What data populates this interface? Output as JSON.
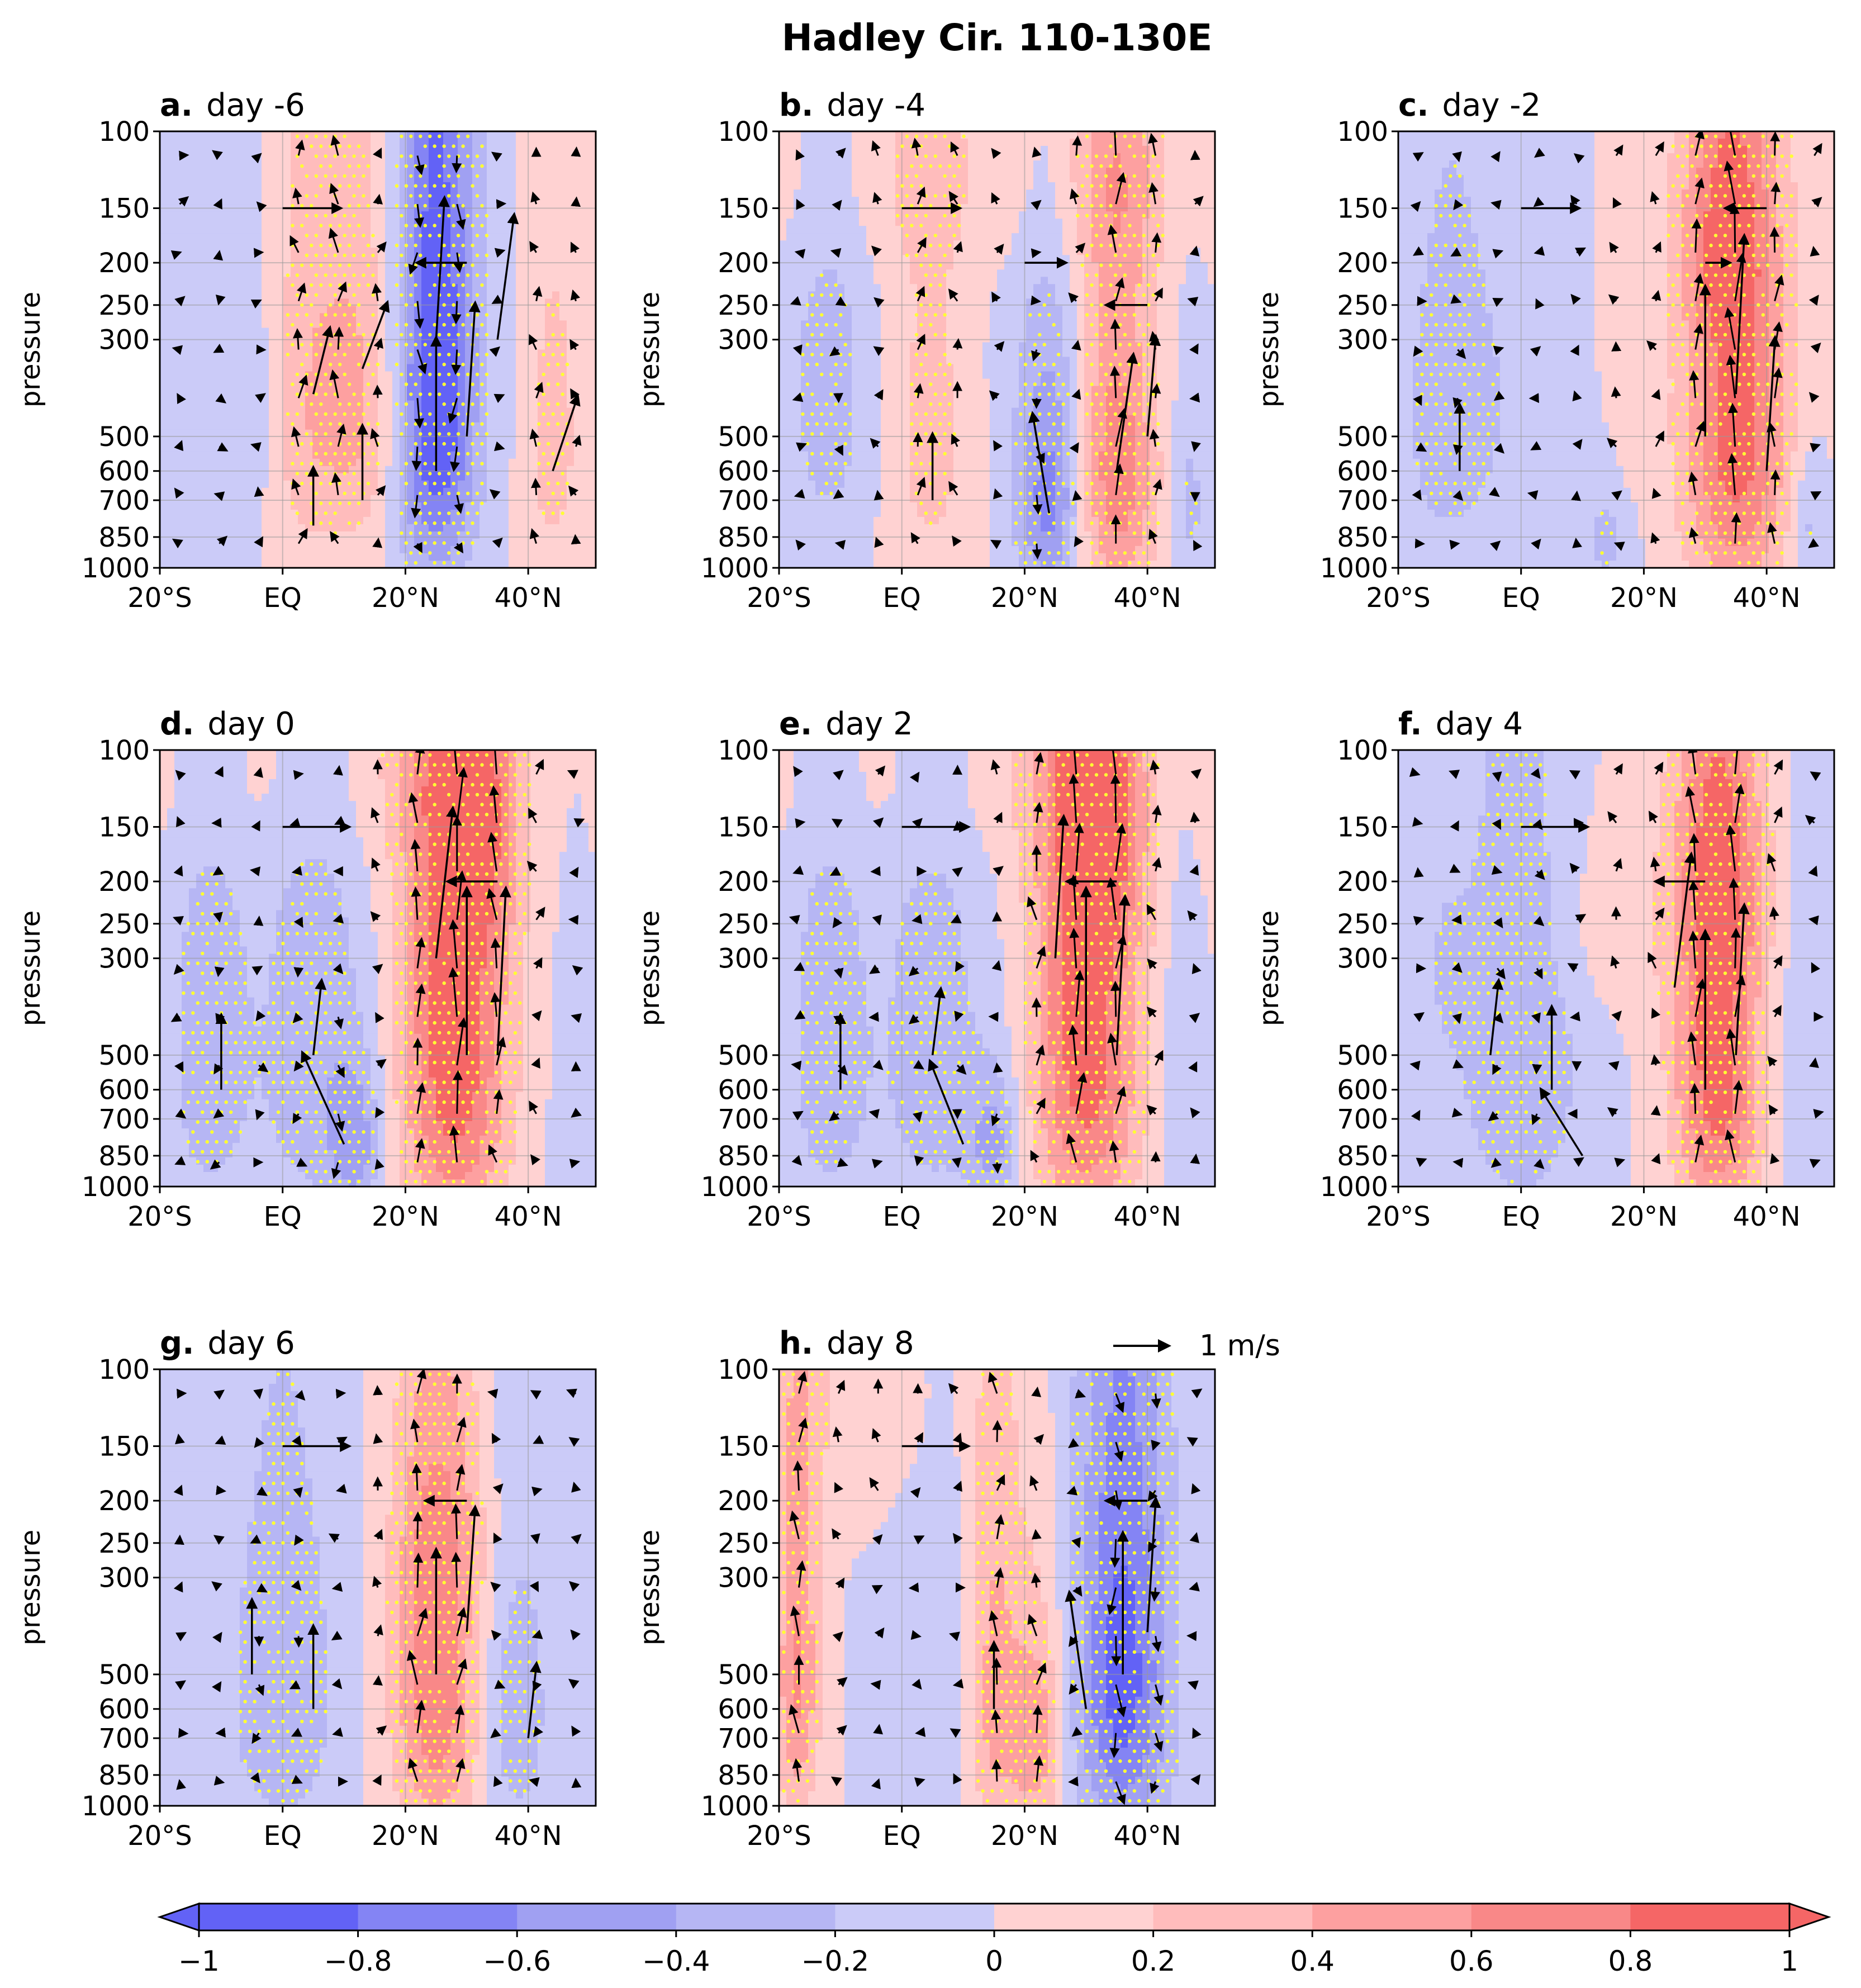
{
  "chart_data": {
    "type": "vector-contour-panels",
    "title": "Hadley Cir. 110-130E",
    "panels": [
      {
        "letter": "a.",
        "label": "day -6",
        "blobs": [
          [
            0,
            -11,
            450,
            9,
            320,
            -0.08
          ],
          [
            0,
            29,
            300,
            10,
            300,
            -0.06
          ],
          [
            0,
            -5,
            420,
            6,
            300,
            -0.15
          ],
          [
            0,
            3.5,
            420,
            5,
            330,
            0.42
          ],
          [
            0,
            13,
            420,
            4.5,
            300,
            0.4
          ],
          [
            0,
            25,
            400,
            4.5,
            420,
            -1.0
          ],
          [
            0,
            44,
            500,
            3.5,
            340,
            0.3
          ]
        ],
        "arrows": [
          [
            13,
            700,
            0,
            0.9
          ],
          [
            13,
            350,
            0.3,
            0.8
          ],
          [
            25,
            600,
            0,
            1.6
          ],
          [
            25,
            300,
            0.1,
            1.7
          ],
          [
            30,
            500,
            0.1,
            1.6
          ],
          [
            35,
            300,
            0.2,
            1.5
          ],
          [
            5,
            800,
            0,
            0.7
          ],
          [
            5,
            400,
            0.2,
            0.8
          ],
          [
            44,
            600,
            0.3,
            0.9
          ],
          [
            0,
            150,
            0.7,
            0
          ],
          [
            30,
            200,
            -0.6,
            0
          ]
        ]
      },
      {
        "letter": "b.",
        "label": "day -4",
        "blobs": [
          [
            0,
            -12,
            400,
            5,
            320,
            -0.3
          ],
          [
            0,
            0,
            120,
            35,
            60,
            0.15
          ],
          [
            0,
            5,
            500,
            5,
            340,
            0.3
          ],
          [
            0,
            24,
            680,
            3.8,
            330,
            -0.7
          ],
          [
            0,
            35,
            600,
            4.5,
            370,
            0.75
          ],
          [
            0,
            35,
            120,
            6,
            70,
            0.2
          ],
          [
            0,
            13,
            400,
            5,
            320,
            -0.05
          ],
          [
            0,
            47,
            700,
            2,
            300,
            -0.25
          ]
        ],
        "arrows": [
          [
            24,
            750,
            -0.2,
            1.2
          ],
          [
            35,
            600,
            0.2,
            1.4
          ],
          [
            40,
            500,
            0.1,
            1.2
          ],
          [
            5,
            700,
            0,
            0.8
          ],
          [
            0,
            150,
            0.7,
            0
          ],
          [
            20,
            200,
            0.5,
            0
          ],
          [
            40,
            250,
            -0.5,
            0
          ]
        ]
      },
      {
        "letter": "c.",
        "label": "day -2",
        "blobs": [
          [
            0,
            -12,
            450,
            6,
            350,
            -0.3
          ],
          [
            0,
            1,
            400,
            6,
            320,
            -0.12
          ],
          [
            0,
            14,
            850,
            3,
            200,
            -0.25
          ],
          [
            0,
            35,
            500,
            6,
            430,
            0.9
          ],
          [
            0,
            33,
            180,
            5,
            80,
            0.4
          ],
          [
            0,
            18,
            350,
            3,
            250,
            0.15
          ],
          [
            0,
            47,
            800,
            2,
            200,
            -0.3
          ]
        ],
        "arrows": [
          [
            30,
            500,
            0,
            1.8
          ],
          [
            35,
            400,
            0.1,
            1.9
          ],
          [
            40,
            600,
            0.1,
            1.6
          ],
          [
            -10,
            600,
            0,
            0.8
          ],
          [
            0,
            150,
            0.7,
            0
          ],
          [
            30,
            200,
            0.3,
            0
          ],
          [
            40,
            150,
            -0.5,
            0
          ]
        ]
      },
      {
        "letter": "d.",
        "label": "day 0",
        "blobs": [
          [
            0,
            -12,
            500,
            5,
            420,
            -0.32
          ],
          [
            0,
            5,
            500,
            6,
            420,
            -0.35
          ],
          [
            0,
            28,
            420,
            6,
            550,
            1.0
          ],
          [
            0,
            32,
            150,
            5,
            90,
            0.4
          ],
          [
            0,
            12,
            800,
            3,
            220,
            -0.45
          ],
          [
            0,
            0,
            110,
            25,
            50,
            0.15
          ],
          [
            0,
            47,
            700,
            2,
            300,
            -0.2
          ]
        ],
        "arrows": [
          [
            30,
            500,
            0,
            2.0
          ],
          [
            35,
            500,
            0.1,
            2.0
          ],
          [
            25,
            300,
            0.2,
            1.8
          ],
          [
            10,
            800,
            -0.5,
            1.1
          ],
          [
            -10,
            600,
            0,
            0.9
          ],
          [
            5,
            500,
            0.1,
            0.9
          ],
          [
            0,
            150,
            0.8,
            0
          ],
          [
            35,
            200,
            -0.6,
            0
          ]
        ]
      },
      {
        "letter": "e.",
        "label": "day 2",
        "blobs": [
          [
            0,
            -12,
            500,
            5,
            420,
            -0.32
          ],
          [
            0,
            5,
            500,
            6,
            420,
            -0.32
          ],
          [
            0,
            30,
            420,
            6,
            520,
            0.95
          ],
          [
            0,
            33,
            150,
            5,
            90,
            0.4
          ],
          [
            0,
            15,
            800,
            3,
            200,
            -0.45
          ],
          [
            0,
            0,
            110,
            25,
            50,
            0.15
          ],
          [
            0,
            45,
            600,
            2,
            300,
            -0.2
          ]
        ],
        "arrows": [
          [
            30,
            500,
            0,
            2.0
          ],
          [
            35,
            500,
            0.1,
            1.9
          ],
          [
            25,
            300,
            0.1,
            1.7
          ],
          [
            10,
            800,
            -0.4,
            1.0
          ],
          [
            -10,
            600,
            0,
            0.9
          ],
          [
            5,
            500,
            0.1,
            0.8
          ],
          [
            0,
            150,
            0.8,
            0
          ],
          [
            35,
            200,
            -0.6,
            0
          ]
        ]
      },
      {
        "letter": "f.",
        "label": "day 4",
        "blobs": [
          [
            0,
            0,
            500,
            7,
            420,
            -0.4
          ],
          [
            0,
            -14,
            300,
            4,
            250,
            -0.15
          ],
          [
            0,
            32,
            500,
            5,
            460,
            0.95
          ],
          [
            0,
            33,
            200,
            5,
            80,
            0.3
          ],
          [
            0,
            15,
            250,
            8,
            100,
            0.15
          ],
          [
            0,
            45,
            600,
            2.5,
            330,
            -0.15
          ]
        ],
        "arrows": [
          [
            30,
            600,
            0,
            1.9
          ],
          [
            35,
            500,
            0.1,
            1.8
          ],
          [
            25,
            350,
            0.2,
            1.6
          ],
          [
            5,
            600,
            0,
            1.0
          ],
          [
            -5,
            500,
            0.1,
            0.9
          ],
          [
            10,
            850,
            -0.5,
            0.8
          ],
          [
            0,
            150,
            0.8,
            0
          ],
          [
            30,
            200,
            -0.6,
            0
          ]
        ]
      },
      {
        "letter": "g.",
        "label": "day 6",
        "blobs": [
          [
            0,
            0,
            550,
            7,
            430,
            -0.35
          ],
          [
            0,
            38,
            600,
            4,
            350,
            -0.35
          ],
          [
            0,
            25,
            550,
            5,
            400,
            0.75
          ],
          [
            0,
            27,
            250,
            6,
            100,
            0.2
          ],
          [
            0,
            -15,
            600,
            2,
            400,
            -0.1
          ]
        ],
        "arrows": [
          [
            25,
            500,
            0,
            1.5
          ],
          [
            30,
            400,
            0.1,
            1.5
          ],
          [
            5,
            600,
            0,
            1.0
          ],
          [
            -5,
            500,
            0,
            0.9
          ],
          [
            40,
            700,
            0.1,
            0.9
          ],
          [
            0,
            150,
            0.8,
            0
          ],
          [
            30,
            200,
            -0.5,
            0
          ]
        ]
      },
      {
        "letter": "h.",
        "label": "day 8",
        "blobs": [
          [
            0,
            -17,
            500,
            2.5,
            350,
            0.65
          ],
          [
            0,
            15,
            550,
            3,
            400,
            0.5
          ],
          [
            0,
            22,
            700,
            3,
            300,
            0.55
          ],
          [
            0,
            36,
            500,
            5.5,
            460,
            -0.9
          ],
          [
            0,
            5,
            500,
            5,
            420,
            -0.2
          ],
          [
            0,
            -5,
            120,
            10,
            60,
            0.2
          ]
        ],
        "arrows": [
          [
            36,
            500,
            0,
            1.7
          ],
          [
            40,
            400,
            0.1,
            1.6
          ],
          [
            30,
            600,
            -0.2,
            1.4
          ],
          [
            15,
            600,
            0,
            0.8
          ],
          [
            0,
            150,
            0.8,
            0
          ],
          [
            40,
            200,
            -0.5,
            0
          ]
        ]
      }
    ],
    "y_axis": {
      "label": "pressure",
      "ticks": [
        100,
        150,
        200,
        250,
        300,
        500,
        600,
        700,
        850,
        1000
      ],
      "range": [
        1000,
        100
      ],
      "scale": "log"
    },
    "x_axis": {
      "ticks": [
        -20,
        0,
        20,
        40
      ],
      "tick_labels": [
        "20°S",
        "EQ",
        "20°N",
        "40°N"
      ],
      "range": [
        -20,
        51
      ]
    },
    "colorbar": {
      "levels": [
        -1,
        -0.8,
        -0.6,
        -0.4,
        -0.2,
        0,
        0.2,
        0.4,
        0.6,
        0.8,
        1
      ],
      "tick_labels": [
        "−1",
        "−0.8",
        "−0.6",
        "−0.4",
        "−0.2",
        "0",
        "0.2",
        "0.4",
        "0.6",
        "0.8",
        "1"
      ],
      "colors": [
        "#6262f6",
        "#8484f4",
        "#a0a0f2",
        "#b6b6f4",
        "#cbcbf8",
        "#ffd2d2",
        "#ffbcbc",
        "#fda0a0",
        "#f98888",
        "#f56666"
      ],
      "extend": "both"
    },
    "reference_vector": {
      "label": "1 m/s",
      "magnitude": 1
    },
    "stipple_color": "#ffff33",
    "arrow_color": "#000000"
  }
}
